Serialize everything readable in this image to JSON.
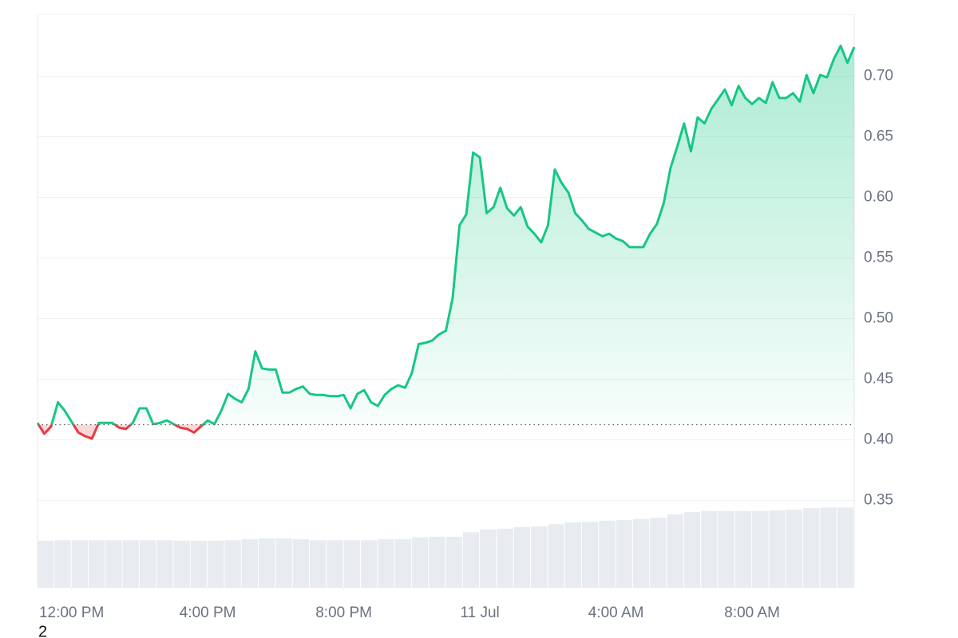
{
  "chart_data": {
    "type": "line",
    "x": [
      -1,
      -0.8,
      -0.6,
      -0.4,
      -0.2,
      0,
      0.2,
      0.4,
      0.6,
      0.8,
      1,
      1.2,
      1.4,
      1.6,
      1.8,
      2,
      2.2,
      2.4,
      2.6,
      2.8,
      3,
      3.2,
      3.4,
      3.6,
      3.8,
      4,
      4.2,
      4.4,
      4.6,
      4.8,
      5,
      5.2,
      5.4,
      5.6,
      5.8,
      6,
      6.2,
      6.4,
      6.6,
      6.8,
      7,
      7.2,
      7.4,
      7.6,
      7.8,
      8,
      8.2,
      8.4,
      8.6,
      8.8,
      9,
      9.2,
      9.4,
      9.6,
      9.8,
      10,
      10.2,
      10.4,
      10.6,
      10.8,
      11,
      11.2,
      11.4,
      11.6,
      11.8,
      12,
      12.2,
      12.4,
      12.6,
      12.8,
      13,
      13.2,
      13.4,
      13.6,
      13.8,
      14,
      14.2,
      14.4,
      14.6,
      14.8,
      15,
      15.2,
      15.4,
      15.6,
      15.8,
      16,
      16.2,
      16.4,
      16.6,
      16.8,
      17,
      17.2,
      17.4,
      17.6,
      17.8,
      18,
      18.2,
      18.4,
      18.6,
      18.8,
      19,
      19.2,
      19.4,
      19.6,
      19.8,
      20,
      20.2,
      20.4,
      20.6,
      20.8,
      21,
      21.2,
      21.4,
      21.6,
      21.8,
      22,
      22.2,
      22.4,
      22.6,
      22.8,
      23
    ],
    "series": [
      {
        "color_up": "#16c784",
        "color_down": "#ea3943",
        "values": [
          0.414,
          0.405,
          0.411,
          0.431,
          0.424,
          0.415,
          0.406,
          0.403,
          0.401,
          0.414,
          0.414,
          0.414,
          0.41,
          0.409,
          0.414,
          0.426,
          0.426,
          0.413,
          0.414,
          0.416,
          0.413,
          0.41,
          0.409,
          0.406,
          0.411,
          0.416,
          0.413,
          0.424,
          0.438,
          0.434,
          0.431,
          0.442,
          0.473,
          0.459,
          0.458,
          0.458,
          0.439,
          0.439,
          0.442,
          0.444,
          0.438,
          0.437,
          0.437,
          0.436,
          0.436,
          0.437,
          0.426,
          0.438,
          0.441,
          0.431,
          0.428,
          0.437,
          0.442,
          0.445,
          0.443,
          0.455,
          0.479,
          0.48,
          0.482,
          0.487,
          0.49,
          0.517,
          0.577,
          0.586,
          0.637,
          0.633,
          0.587,
          0.592,
          0.608,
          0.591,
          0.585,
          0.592,
          0.576,
          0.57,
          0.563,
          0.577,
          0.623,
          0.612,
          0.604,
          0.587,
          0.581,
          0.574,
          0.571,
          0.568,
          0.57,
          0.566,
          0.564,
          0.559,
          0.559,
          0.559,
          0.57,
          0.578,
          0.595,
          0.624,
          0.642,
          0.661,
          0.638,
          0.666,
          0.661,
          0.673,
          0.681,
          0.689,
          0.676,
          0.692,
          0.682,
          0.677,
          0.682,
          0.678,
          0.695,
          0.682,
          0.682,
          0.686,
          0.679,
          0.701,
          0.686,
          0.701,
          0.699,
          0.714,
          0.725,
          0.711,
          0.724
        ]
      }
    ],
    "baseline": 0.4125,
    "volume": {
      "color": "#e8ecf0",
      "x": [
        -1,
        -0.5,
        0,
        0.5,
        1,
        1.5,
        2,
        2.5,
        3,
        3.5,
        4,
        4.5,
        5,
        5.5,
        6,
        6.5,
        7,
        7.5,
        8,
        8.5,
        9,
        9.5,
        10,
        10.5,
        11,
        11.5,
        12,
        12.5,
        13,
        13.5,
        14,
        14.5,
        15,
        15.5,
        16,
        16.5,
        17,
        17.5,
        18,
        18.5,
        19,
        19.5,
        20,
        20.5,
        21,
        21.5,
        22,
        22.5
      ],
      "values": [
        8.2,
        8.3,
        8.3,
        8.3,
        8.3,
        8.3,
        8.3,
        8.3,
        8.2,
        8.2,
        8.2,
        8.3,
        8.5,
        8.6,
        8.6,
        8.5,
        8.3,
        8.3,
        8.3,
        8.3,
        8.5,
        8.5,
        8.8,
        8.9,
        8.9,
        9.7,
        10.2,
        10.3,
        10.6,
        10.7,
        11.1,
        11.4,
        11.5,
        11.7,
        11.8,
        12.0,
        12.2,
        12.8,
        13.2,
        13.4,
        13.4,
        13.4,
        13.4,
        13.5,
        13.6,
        13.9,
        14.0,
        14.0
      ]
    },
    "xlim": [
      -1,
      23
    ],
    "xticks": [
      {
        "value": 0,
        "label": "12:00 PM"
      },
      {
        "value": 4,
        "label": "4:00 PM"
      },
      {
        "value": 8,
        "label": "8:00 PM"
      },
      {
        "value": 12,
        "label": "11 Jul"
      },
      {
        "value": 16,
        "label": "4:00 AM"
      },
      {
        "value": 20,
        "label": "8:00 AM"
      }
    ],
    "ylim": [
      0.278,
      0.751
    ],
    "yticks": [
      0.35,
      {
        "value": 0.4,
        "label": "0.40"
      },
      0.45,
      {
        "value": 0.5,
        "label": "0.50"
      },
      0.55,
      {
        "value": 0.6,
        "label": "0.60"
      },
      0.65,
      {
        "value": 0.7,
        "label": "0.70"
      }
    ],
    "y2lim": [
      0,
      100
    ],
    "grid": true,
    "annotation": "2"
  }
}
